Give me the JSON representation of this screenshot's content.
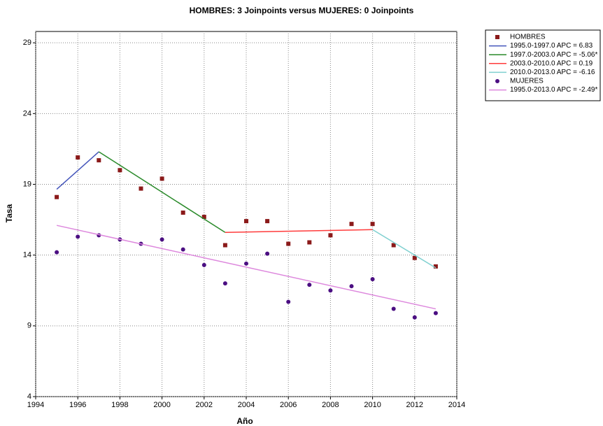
{
  "chart_data": {
    "type": "scatter",
    "title": "HOMBRES: 3 Joinpoints  versus  MUJERES: 0 Joinpoints",
    "x_label": "Año",
    "y_label": "Tasa",
    "xlim": [
      1994,
      2014
    ],
    "xticks": [
      1994,
      1996,
      1998,
      2000,
      2002,
      2004,
      2006,
      2008,
      2010,
      2012,
      2014
    ],
    "ylim": [
      4,
      29.8
    ],
    "yticks": [
      4,
      9,
      14,
      19,
      24,
      29
    ],
    "grid": true,
    "legend": "outside-right",
    "series": [
      {
        "name": "HOMBRES",
        "color": "#8b1a1a",
        "style": "square",
        "x": [
          1995,
          1996,
          1997,
          1998,
          1999,
          2000,
          2001,
          2002,
          2003,
          2004,
          2005,
          2006,
          2007,
          2008,
          2009,
          2010,
          2011,
          2012,
          2013
        ],
        "values": [
          18.1,
          20.9,
          20.7,
          20.0,
          18.7,
          19.4,
          17.0,
          16.7,
          14.7,
          16.4,
          16.4,
          14.8,
          14.9,
          15.4,
          16.2,
          16.2,
          14.7,
          13.8,
          13.2
        ]
      },
      {
        "name": "1995.0-1997.0 APC =  6.83",
        "color": "#4455bb",
        "style": "line",
        "x": [
          1995,
          1997
        ],
        "values": [
          18.65,
          21.3
        ]
      },
      {
        "name": "1997.0-2003.0 APC = -5.06*",
        "color": "#2a8a2a",
        "style": "line",
        "x": [
          1997,
          2003
        ],
        "values": [
          21.3,
          15.6
        ]
      },
      {
        "name": "2003.0-2010.0 APC =  0.19",
        "color": "#ff3b3b",
        "style": "line",
        "x": [
          2003,
          2010
        ],
        "values": [
          15.6,
          15.8
        ]
      },
      {
        "name": "2010.0-2013.0 APC = -6.16",
        "color": "#7fd0d0",
        "style": "line",
        "x": [
          2010,
          2013
        ],
        "values": [
          15.8,
          13.1
        ]
      },
      {
        "name": "MUJERES",
        "color": "#4b0f82",
        "style": "circle",
        "x": [
          1995,
          1996,
          1997,
          1998,
          1999,
          2000,
          2001,
          2002,
          2003,
          2004,
          2005,
          2006,
          2007,
          2008,
          2009,
          2010,
          2011,
          2012,
          2013
        ],
        "values": [
          14.2,
          15.3,
          15.4,
          15.1,
          14.8,
          15.1,
          14.4,
          13.3,
          12.0,
          13.4,
          14.1,
          10.7,
          11.9,
          11.5,
          11.8,
          12.3,
          10.2,
          9.6,
          9.9
        ]
      },
      {
        "name": "1995.0-2013.0 APC = -2.49*",
        "color": "#dd88dd",
        "style": "line",
        "x": [
          1995,
          2013
        ],
        "values": [
          16.1,
          10.2
        ]
      }
    ]
  }
}
